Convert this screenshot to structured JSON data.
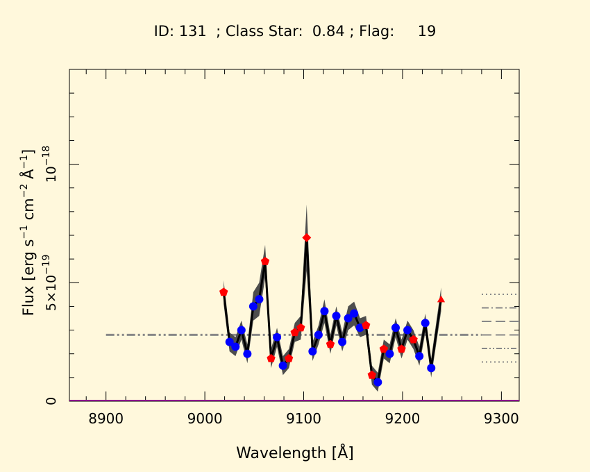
{
  "chart_data": {
    "type": "line",
    "title": "ID: 131  ; Class Star:  0.84 ; Flag:     19",
    "xlabel": "Wavelength [Å]",
    "ylabel_main": "Flux [erg s",
    "ylabel_sup1": "−1",
    "ylabel_mid": " cm",
    "ylabel_sup2": "−2",
    "ylabel_mid2": " Å",
    "ylabel_sup3": "−1",
    "ylabel_end": "]",
    "xlim": [
      8863,
      9318
    ],
    "ylim": [
      0,
      1.4e-18
    ],
    "x_ticks": [
      8900,
      9000,
      9100,
      9200,
      9300
    ],
    "x_tick_labels": [
      "8900",
      "9000",
      "9100",
      "9200",
      "9300"
    ],
    "y_ticks": [
      0,
      5e-19,
      1e-18
    ],
    "y_tick_labels": [
      {
        "base": "0",
        "sup": ""
      },
      {
        "base": "5×10",
        "sup": "−19"
      },
      {
        "base": "10",
        "sup": "−18"
      }
    ],
    "continuum_level": 2.8e-19,
    "continuum_range": [
      8900,
      9280
    ],
    "series": [
      {
        "x": [
          9019,
          9025,
          9031,
          9037,
          9043,
          9049,
          9055,
          9061,
          9067,
          9073,
          9079,
          9085,
          9091,
          9097,
          9103,
          9109,
          9115,
          9121,
          9127,
          9133,
          9139,
          9145,
          9151,
          9157,
          9163,
          9169,
          9175,
          9181,
          9187,
          9193,
          9199,
          9205,
          9211,
          9217,
          9223,
          9229,
          9239
        ],
        "values": [
          4.6e-19,
          2.5e-19,
          2.3e-19,
          3e-19,
          2e-19,
          4e-19,
          4.3e-19,
          5.9e-19,
          1.8e-19,
          2.7e-19,
          1.5e-19,
          1.8e-19,
          2.9e-19,
          3.1e-19,
          6.9e-19,
          2.1e-19,
          2.8e-19,
          3.8e-19,
          2.4e-19,
          3.6e-19,
          2.5e-19,
          3.5e-19,
          3.7e-19,
          3.1e-19,
          3.2e-19,
          1.1e-19,
          8e-20,
          2.2e-19,
          2e-19,
          3.1e-19,
          2.2e-19,
          3e-19,
          2.6e-19,
          1.9e-19,
          3.3e-19,
          1.4e-19,
          4.3e-19
        ],
        "errors": [
          5e-20,
          4e-20,
          4e-20,
          4e-20,
          4e-20,
          6e-20,
          7e-20,
          7e-20,
          4e-20,
          4e-20,
          4e-20,
          4e-20,
          4e-20,
          5e-20,
          1.4e-19,
          4e-20,
          4e-20,
          5e-20,
          4e-20,
          4e-20,
          4e-20,
          5e-20,
          5e-20,
          4e-20,
          4e-20,
          4e-20,
          4e-20,
          4e-20,
          4e-20,
          4e-20,
          4e-20,
          4e-20,
          4e-20,
          4e-20,
          4e-20,
          4e-20,
          5e-20
        ],
        "markers": [
          "pentagon",
          "circle",
          "circle",
          "circle",
          "circle",
          "circle",
          "circle",
          "pentagon",
          "pentagon",
          "circle",
          "circle",
          "pentagon",
          "pentagon",
          "pentagon",
          "diamond",
          "circle",
          "circle",
          "circle",
          "pentagon",
          "circle",
          "circle",
          "circle",
          "circle",
          "circle",
          "pentagon",
          "pentagon",
          "circle",
          "pentagon",
          "circle",
          "circle",
          "pentagon",
          "circle",
          "pentagon",
          "circle",
          "circle",
          "circle",
          "triangle"
        ],
        "marker_colors": [
          "red",
          "blue",
          "blue",
          "blue",
          "blue",
          "blue",
          "blue",
          "red",
          "red",
          "blue",
          "blue",
          "red",
          "red",
          "red",
          "red",
          "blue",
          "blue",
          "blue",
          "red",
          "blue",
          "blue",
          "blue",
          "blue",
          "blue",
          "red",
          "red",
          "blue",
          "red",
          "blue",
          "blue",
          "red",
          "blue",
          "red",
          "blue",
          "blue",
          "blue",
          "red"
        ]
      }
    ],
    "colors": {
      "background": "#fff8dc",
      "axis": "#000000",
      "band": "#4d4d4d",
      "line": "#000000",
      "continuum": "#888888",
      "red": "#ff0000",
      "blue": "#0000ff",
      "baseline": "#8b008b"
    },
    "legend_placement": "right edge (line-style samples, no text)",
    "legend_styles": [
      "dotted",
      "dash-dot",
      "dashed",
      "dashed",
      "dash-dot-dot",
      "dotted"
    ],
    "grid": false
  }
}
